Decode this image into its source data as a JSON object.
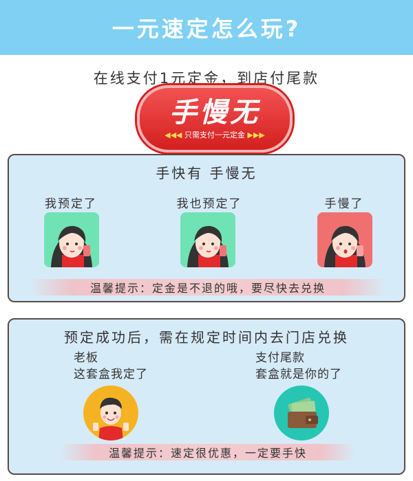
{
  "header": {
    "title": "一元速定怎么玩?"
  },
  "subtitle": "在线支付1元定金，到店付尾款",
  "badge": {
    "title": "手慢无",
    "arrows_left": "◀◀◀",
    "sub": "只需支付一元定金",
    "arrows_right": "▶▶▶"
  },
  "panel_top": {
    "heading": "手快有  手慢无",
    "columns": [
      {
        "label": "我预定了"
      },
      {
        "label": "我也预定了"
      },
      {
        "label": "手慢了"
      }
    ],
    "tip": "温馨提示：定金是不退的哦，要尽快去兑换"
  },
  "panel_bottom": {
    "heading": "预定成功后，需在规定时间内去门店兑换",
    "left_text": [
      "老板",
      "这套盒我定了"
    ],
    "right_text": [
      "支付尾款",
      "套盒就是你的了"
    ],
    "tip": "温馨提示：速定很优惠，一定要手快"
  },
  "colors": {
    "header": "#7fd0f3",
    "panel": "#d6ebf8",
    "badge": "#e02b2b",
    "green_tile": "#6fe3b4",
    "red_tile": "#f07070"
  }
}
